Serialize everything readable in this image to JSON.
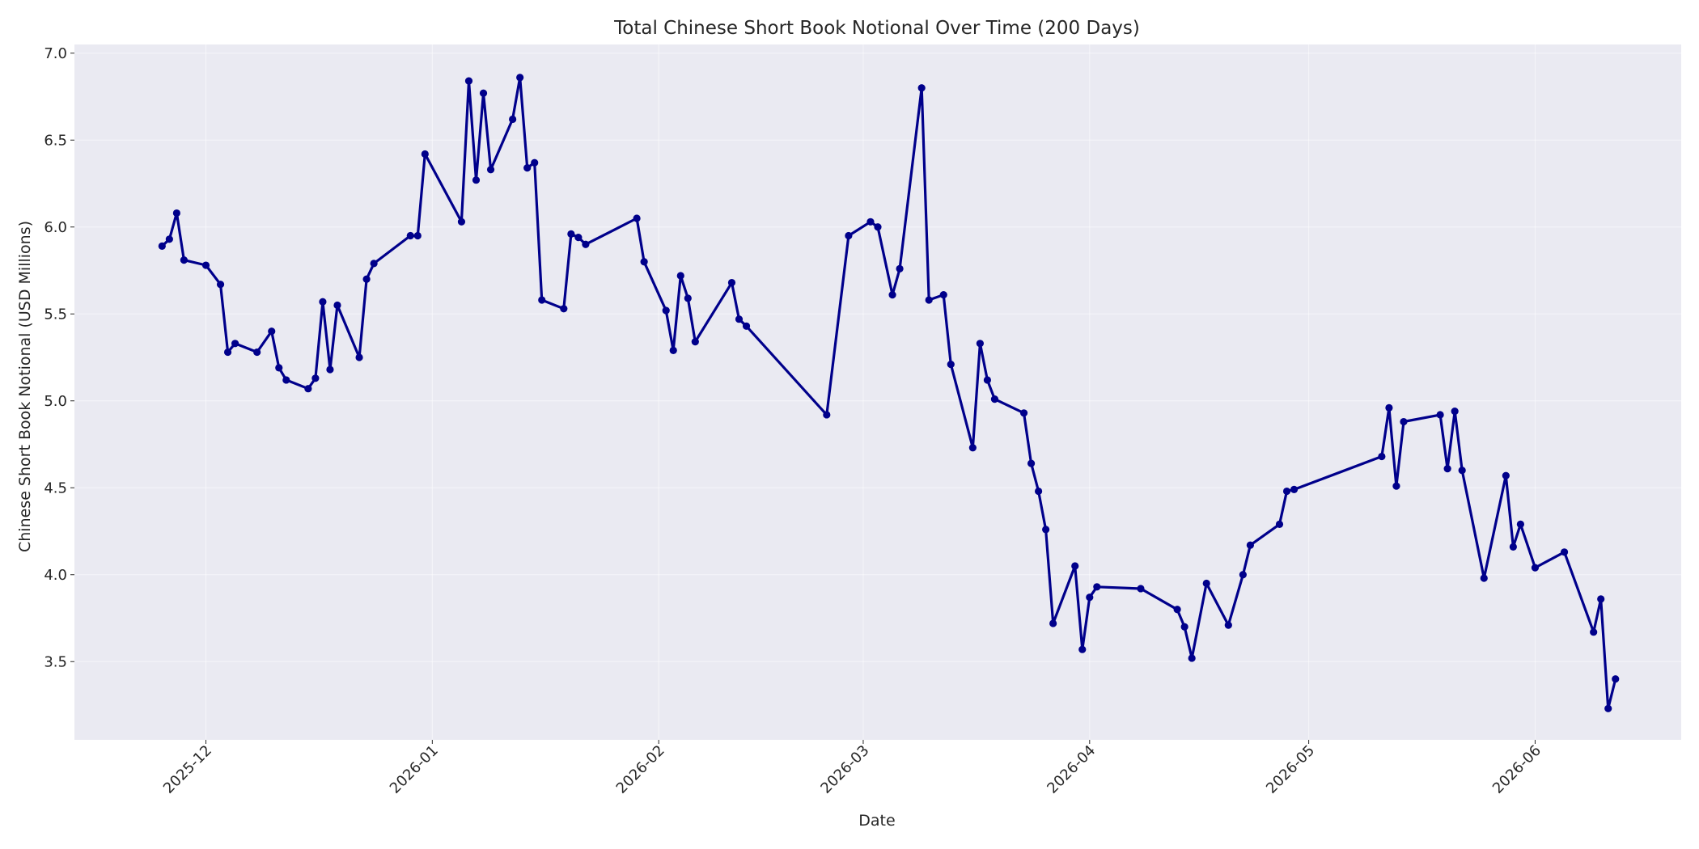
{
  "chart_data": {
    "type": "line",
    "title": "Total Chinese Short Book Notional Over Time (200 Days)",
    "xlabel": "Date",
    "ylabel": "Chinese Short Book Notional (USD Millions)",
    "xlim": [
      "2025-11-13",
      "2026-06-21"
    ],
    "ylim": [
      3.05,
      7.05
    ],
    "yticks": [
      3.5,
      4.0,
      4.5,
      5.0,
      5.5,
      6.0,
      6.5,
      7.0
    ],
    "xticks": [
      {
        "date": "2025-12-01",
        "label": "2025-12"
      },
      {
        "date": "2026-01-01",
        "label": "2026-01"
      },
      {
        "date": "2026-02-01",
        "label": "2026-02"
      },
      {
        "date": "2026-03-01",
        "label": "2026-03"
      },
      {
        "date": "2026-04-01",
        "label": "2026-04"
      },
      {
        "date": "2026-05-01",
        "label": "2026-05"
      },
      {
        "date": "2026-06-01",
        "label": "2026-06"
      }
    ],
    "grid": true,
    "colors": {
      "line": "#00008b",
      "background": "#eaeaf2",
      "grid": "#ffffff"
    },
    "series": [
      {
        "x": [
          "2025-11-25",
          "2025-11-26",
          "2025-11-27",
          "2025-11-28",
          "2025-12-01",
          "2025-12-03",
          "2025-12-04",
          "2025-12-05",
          "2025-12-08",
          "2025-12-10",
          "2025-12-11",
          "2025-12-12",
          "2025-12-15",
          "2025-12-16",
          "2025-12-17",
          "2025-12-18",
          "2025-12-19",
          "2025-12-22",
          "2025-12-23",
          "2025-12-24",
          "2025-12-29",
          "2025-12-30",
          "2025-12-31",
          "2026-01-05",
          "2026-01-06",
          "2026-01-07",
          "2026-01-08",
          "2026-01-09",
          "2026-01-12",
          "2026-01-13",
          "2026-01-14",
          "2026-01-15",
          "2026-01-16",
          "2026-01-19",
          "2026-01-20",
          "2026-01-21",
          "2026-01-22",
          "2026-01-29",
          "2026-01-30",
          "2026-02-02",
          "2026-02-03",
          "2026-02-04",
          "2026-02-05",
          "2026-02-06",
          "2026-02-11",
          "2026-02-12",
          "2026-02-13",
          "2026-02-24",
          "2026-02-27",
          "2026-03-02",
          "2026-03-03",
          "2026-03-05",
          "2026-03-06",
          "2026-03-09",
          "2026-03-10",
          "2026-03-12",
          "2026-03-13",
          "2026-03-16",
          "2026-03-17",
          "2026-03-18",
          "2026-03-19",
          "2026-03-23",
          "2026-03-24",
          "2026-03-25",
          "2026-03-26",
          "2026-03-27",
          "2026-03-30",
          "2026-03-31",
          "2026-04-01",
          "2026-04-02",
          "2026-04-08",
          "2026-04-13",
          "2026-04-14",
          "2026-04-15",
          "2026-04-17",
          "2026-04-20",
          "2026-04-22",
          "2026-04-23",
          "2026-04-27",
          "2026-04-28",
          "2026-04-29",
          "2026-05-11",
          "2026-05-12",
          "2026-05-13",
          "2026-05-14",
          "2026-05-19",
          "2026-05-20",
          "2026-05-21",
          "2026-05-22",
          "2026-05-25",
          "2026-05-28",
          "2026-05-29",
          "2026-05-30",
          "2026-06-01",
          "2026-06-05",
          "2026-06-09",
          "2026-06-10",
          "2026-06-11",
          "2026-06-12"
        ],
        "y": [
          5.89,
          5.93,
          6.08,
          5.81,
          5.78,
          5.67,
          5.28,
          5.33,
          5.28,
          5.4,
          5.19,
          5.12,
          5.07,
          5.13,
          5.57,
          5.18,
          5.55,
          5.25,
          5.7,
          5.79,
          5.95,
          5.95,
          6.42,
          6.03,
          6.84,
          6.27,
          6.77,
          6.33,
          6.62,
          6.86,
          6.34,
          6.37,
          5.58,
          5.53,
          5.96,
          5.94,
          5.9,
          6.05,
          5.8,
          5.52,
          5.29,
          5.72,
          5.59,
          5.34,
          5.68,
          5.47,
          5.43,
          4.92,
          5.95,
          6.03,
          6.0,
          5.61,
          5.76,
          6.8,
          5.58,
          5.61,
          5.21,
          4.73,
          5.33,
          5.12,
          5.01,
          4.93,
          4.64,
          4.48,
          4.26,
          3.72,
          4.05,
          3.57,
          3.87,
          3.93,
          3.92,
          3.8,
          3.7,
          3.52,
          3.95,
          3.71,
          4.0,
          4.17,
          4.29,
          4.48,
          4.49,
          4.68,
          4.96,
          4.51,
          4.88,
          4.92,
          4.61,
          4.94,
          4.6,
          3.98,
          4.57,
          4.16,
          4.29,
          4.04,
          4.13,
          3.67,
          3.86,
          3.23,
          3.4
        ]
      }
    ]
  }
}
